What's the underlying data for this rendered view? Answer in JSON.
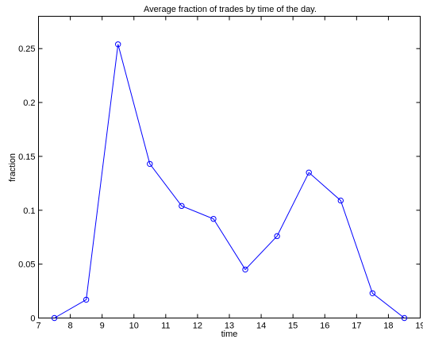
{
  "chart_data": {
    "type": "line",
    "title": "Average fraction of trades by time of the day.",
    "xlabel": "time",
    "ylabel": "fraction",
    "xlim": [
      7,
      19
    ],
    "ylim": [
      0,
      0.28
    ],
    "xticks": [
      7,
      8,
      9,
      10,
      11,
      12,
      13,
      14,
      15,
      16,
      17,
      18,
      19
    ],
    "xtick_labels": [
      "7",
      "8",
      "9",
      "10",
      "11",
      "12",
      "13",
      "14",
      "15",
      "16",
      "17",
      "18",
      "19"
    ],
    "yticks": [
      0,
      0.05,
      0.1,
      0.15,
      0.2,
      0.25
    ],
    "ytick_labels": [
      "0",
      "0.05",
      "0.1",
      "0.15",
      "0.2",
      "0.25"
    ],
    "grid": false,
    "series": [
      {
        "color": "#0000ff",
        "marker": "circle",
        "x": [
          7.5,
          8.5,
          9.5,
          10.5,
          11.5,
          12.5,
          13.5,
          14.5,
          15.5,
          16.5,
          17.5,
          18.5
        ],
        "y": [
          0.0,
          0.017,
          0.254,
          0.143,
          0.104,
          0.092,
          0.045,
          0.076,
          0.135,
          0.109,
          0.023,
          0.0
        ]
      }
    ]
  }
}
